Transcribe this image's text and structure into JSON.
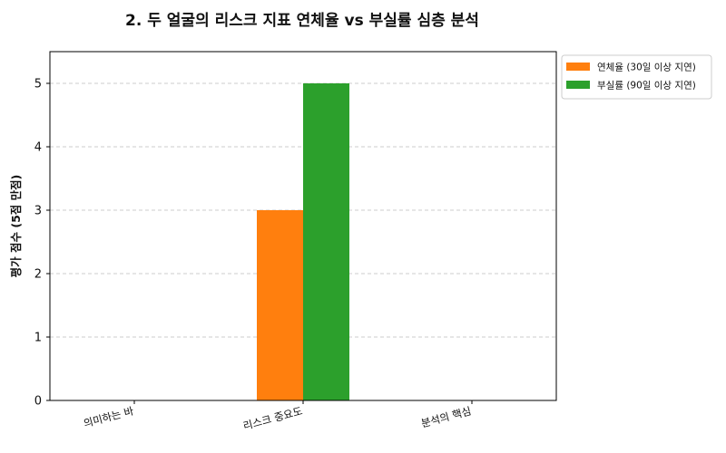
{
  "chart_data": {
    "type": "bar",
    "title": "2. 두 얼굴의 리스크 지표 연체율 vs 부실률 심층 분석",
    "xlabel": "",
    "ylabel": "평가 점수 (5점 만점)",
    "categories": [
      "의미하는 바",
      "리스크 중요도",
      "분석의 핵심"
    ],
    "series": [
      {
        "name": "연체율 (30일 이상 지연)",
        "values": [
          0,
          3,
          0
        ],
        "color": "#ff7f0e"
      },
      {
        "name": "부실률 (90일 이상 지연)",
        "values": [
          0,
          5,
          0
        ],
        "color": "#2ca02c"
      }
    ],
    "ylim": [
      0,
      5.5
    ],
    "yticks": [
      0,
      1,
      2,
      3,
      4,
      5
    ],
    "grid": "y-dashed",
    "legend_position": "outside-top-right"
  }
}
